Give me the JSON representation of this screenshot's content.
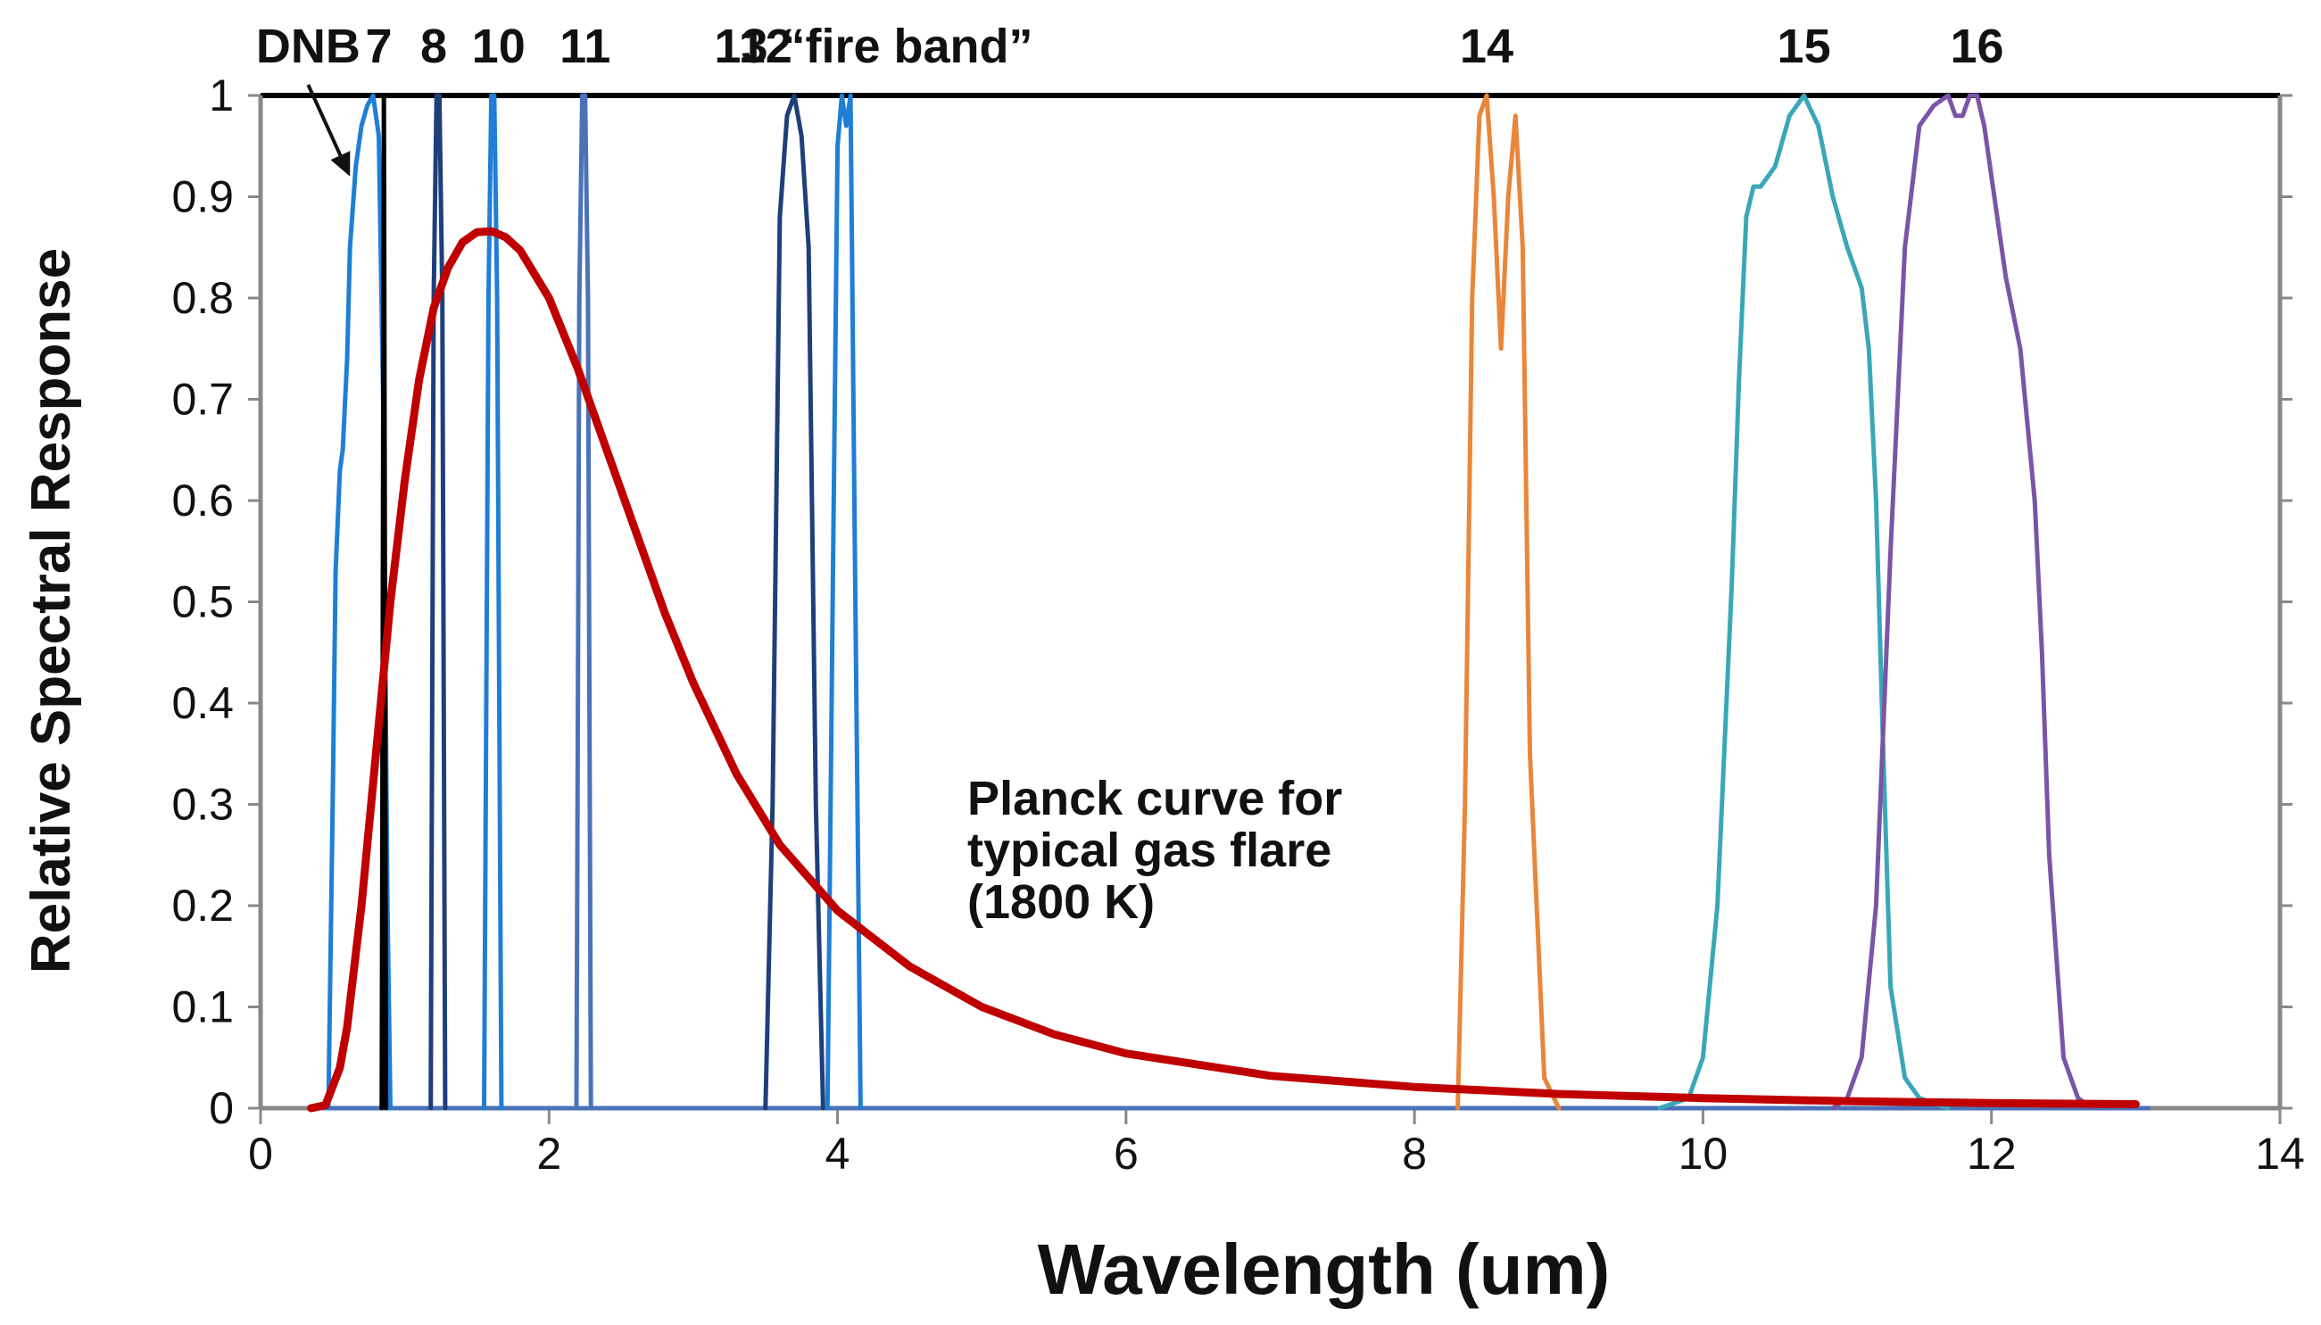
{
  "chart_data": {
    "type": "line",
    "title": "",
    "xlabel": "Wavelength (um)",
    "ylabel": "Relative Spectral Response",
    "xlim": [
      0,
      14
    ],
    "ylim": [
      0,
      1
    ],
    "x_ticks": [
      "0",
      "2",
      "4",
      "6",
      "8",
      "10",
      "12",
      "14"
    ],
    "y_ticks": [
      "0",
      "0.1",
      "0.2",
      "0.3",
      "0.4",
      "0.5",
      "0.6",
      "0.7",
      "0.8",
      "0.9",
      "1"
    ],
    "grid": false,
    "series": [
      {
        "name": "DNB",
        "color": "#1f7ed6",
        "x": [
          0.47,
          0.5,
          0.52,
          0.55,
          0.57,
          0.6,
          0.62,
          0.66,
          0.7,
          0.74,
          0.78,
          0.82,
          0.85,
          0.88,
          0.9
        ],
        "y": [
          0,
          0.3,
          0.53,
          0.63,
          0.65,
          0.74,
          0.85,
          0.93,
          0.97,
          0.99,
          1.0,
          0.96,
          0.7,
          0.2,
          0
        ]
      },
      {
        "name": "7",
        "color": "#000000",
        "x": [
          0.84,
          0.855,
          0.87
        ],
        "y": [
          0,
          1.0,
          0
        ]
      },
      {
        "name": "8",
        "color": "#1f3f7a",
        "x": [
          1.18,
          1.2,
          1.22,
          1.24,
          1.26,
          1.28
        ],
        "y": [
          0,
          0.8,
          1.0,
          1.0,
          0.8,
          0
        ]
      },
      {
        "name": "10",
        "color": "#1f7ed6",
        "x": [
          1.55,
          1.58,
          1.6,
          1.62,
          1.64,
          1.67
        ],
        "y": [
          0,
          0.8,
          1.0,
          1.0,
          0.8,
          0
        ]
      },
      {
        "name": "11",
        "color": "#4a72b8",
        "x": [
          2.19,
          2.21,
          2.23,
          2.25,
          2.27,
          2.29
        ],
        "y": [
          0,
          0.8,
          1.0,
          1.0,
          0.8,
          0
        ]
      },
      {
        "name": "12",
        "color": "#1f3f7a",
        "x": [
          3.5,
          3.55,
          3.6,
          3.65,
          3.7,
          3.75,
          3.8,
          3.85,
          3.9
        ],
        "y": [
          0,
          0.3,
          0.88,
          0.98,
          1.0,
          0.96,
          0.85,
          0.3,
          0
        ]
      },
      {
        "name": "13 “fire band”",
        "color": "#1f7ed6",
        "x": [
          3.93,
          3.97,
          4.0,
          4.03,
          4.06,
          4.09,
          4.12,
          4.16
        ],
        "y": [
          0,
          0.55,
          0.95,
          1.0,
          0.97,
          1.0,
          0.55,
          0
        ]
      },
      {
        "name": "14",
        "color": "#e8863a",
        "x": [
          8.3,
          8.35,
          8.4,
          8.45,
          8.5,
          8.55,
          8.6,
          8.65,
          8.7,
          8.75,
          8.8,
          8.9,
          9.0
        ],
        "y": [
          0,
          0.3,
          0.8,
          0.98,
          1.0,
          0.9,
          0.75,
          0.9,
          0.98,
          0.85,
          0.35,
          0.03,
          0
        ]
      },
      {
        "name": "15",
        "color": "#3aa7b8",
        "x": [
          9.7,
          9.9,
          10.0,
          10.1,
          10.2,
          10.25,
          10.3,
          10.35,
          10.4,
          10.5,
          10.6,
          10.7,
          10.8,
          10.9,
          11.0,
          11.1,
          11.15,
          11.2,
          11.25,
          11.3,
          11.4,
          11.5,
          11.7
        ],
        "y": [
          0,
          0.01,
          0.05,
          0.2,
          0.52,
          0.72,
          0.88,
          0.91,
          0.91,
          0.93,
          0.98,
          1.0,
          0.97,
          0.9,
          0.85,
          0.81,
          0.75,
          0.6,
          0.35,
          0.12,
          0.03,
          0.01,
          0
        ]
      },
      {
        "name": "16",
        "color": "#7a55a6",
        "x": [
          10.9,
          11.0,
          11.1,
          11.2,
          11.3,
          11.4,
          11.5,
          11.6,
          11.7,
          11.75,
          11.8,
          11.85,
          11.9,
          11.95,
          12.0,
          12.1,
          12.2,
          12.3,
          12.35,
          12.4,
          12.5,
          12.6,
          12.7
        ],
        "y": [
          0,
          0.01,
          0.05,
          0.2,
          0.55,
          0.85,
          0.97,
          0.99,
          1.0,
          0.98,
          0.98,
          1.0,
          1.0,
          0.97,
          0.92,
          0.82,
          0.75,
          0.6,
          0.45,
          0.25,
          0.05,
          0.01,
          0
        ]
      },
      {
        "name": "Planck curve for typical gas flare (1800 K)",
        "color": "#c00000",
        "x": [
          0.35,
          0.45,
          0.55,
          0.6,
          0.7,
          0.8,
          0.9,
          1.0,
          1.1,
          1.2,
          1.3,
          1.4,
          1.5,
          1.6,
          1.7,
          1.8,
          2.0,
          2.2,
          2.4,
          2.6,
          2.8,
          3.0,
          3.3,
          3.6,
          4.0,
          4.5,
          5.0,
          5.5,
          6.0,
          7.0,
          8.0,
          9.0,
          10.0,
          11.0,
          12.0,
          13.0
        ],
        "y": [
          0,
          0.003,
          0.04,
          0.08,
          0.2,
          0.35,
          0.5,
          0.62,
          0.72,
          0.79,
          0.83,
          0.855,
          0.865,
          0.866,
          0.86,
          0.847,
          0.8,
          0.73,
          0.65,
          0.57,
          0.49,
          0.42,
          0.33,
          0.26,
          0.195,
          0.14,
          0.1,
          0.073,
          0.054,
          0.032,
          0.021,
          0.014,
          0.01,
          0.007,
          0.005,
          0.004
        ]
      }
    ],
    "band_labels": [
      {
        "text": "DNB",
        "x": 0.33
      },
      {
        "text": "7",
        "x": 0.82
      },
      {
        "text": "8",
        "x": 1.2
      },
      {
        "text": "10",
        "x": 1.65
      },
      {
        "text": "11",
        "x": 2.25
      },
      {
        "text": "12",
        "x": 3.5
      },
      {
        "text": "13 “fire band”",
        "x": 4.25
      },
      {
        "text": "14",
        "x": 8.5
      },
      {
        "text": "15",
        "x": 10.7
      },
      {
        "text": "16",
        "x": 11.9
      }
    ],
    "annotation": [
      "Planck curve for",
      "typical gas flare",
      "(1800 K)"
    ],
    "annotation_pos": {
      "x": 4.9,
      "y": 0.29
    },
    "arrow_target": {
      "x": 0.62,
      "y": 0.92
    }
  }
}
